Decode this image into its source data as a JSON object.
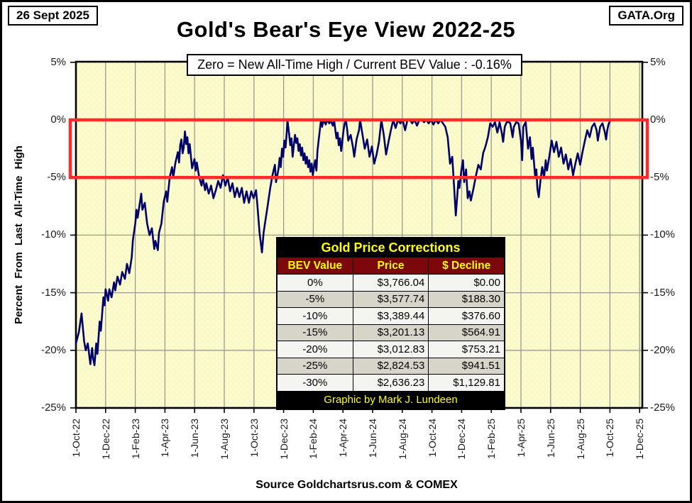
{
  "header": {
    "date_box": "26 Sept 2025",
    "org_box": "GATA.Org",
    "title": "Gold's Bear's Eye View 2022-25",
    "subtitle": "Zero = New All-Time High / Current  BEV Value : -0.16%"
  },
  "y_axis_title": "Percent From Last All-Time High",
  "footer": {
    "source": "Source Goldchartsrus.com & COMEX"
  },
  "corrections_table": {
    "title": "Gold Price Corrections",
    "columns": [
      "BEV Value",
      "Price",
      "$ Decline"
    ],
    "rows": [
      [
        "0%",
        "$3,766.04",
        "$0.00"
      ],
      [
        "-5%",
        "$3,577.74",
        "$188.30"
      ],
      [
        "-10%",
        "$3,389.44",
        "$376.60"
      ],
      [
        "-15%",
        "$3,201.13",
        "$564.91"
      ],
      [
        "-20%",
        "$3,012.83",
        "$753.21"
      ],
      [
        "-25%",
        "$2,824.53",
        "$941.51"
      ],
      [
        "-30%",
        "$2,636.23",
        "$1,129.81"
      ]
    ],
    "footer": "Graphic by Mark J. Lundeen"
  },
  "colors": {
    "plot_bg": "#fafac9",
    "plot_bg_dots": "#ffffdf",
    "gridline": "#9a9a92",
    "axis": "#000000",
    "line": "#00006b",
    "highlight_box": "#ff2b2b",
    "table_title_bg": "#000000",
    "table_title_text": "#ffff00",
    "table_header_bg": "#7d080c",
    "row_alt_bg": "#d7d5ca"
  },
  "chart_data": {
    "type": "line",
    "title": "Gold's Bear's Eye View 2022-25",
    "subtitle": "Zero = New All-Time High / Current BEV Value : -0.16%",
    "ylabel": "Percent From Last All-Time High",
    "x_unit": "months since 1-Oct-2022",
    "ylim": [
      -25,
      5
    ],
    "grid": true,
    "current_bev_value": -0.16,
    "highlight_band": {
      "from": 0,
      "to": -5,
      "note": "red box marks 0% to -5% zone"
    },
    "x_tick_labels": [
      "1-Oct-22",
      "1-Dec-22",
      "1-Feb-23",
      "1-Apr-23",
      "1-Jun-23",
      "1-Aug-23",
      "1-Oct-23",
      "1-Dec-23",
      "1-Feb-24",
      "1-Apr-24",
      "1-Jun-24",
      "1-Aug-24",
      "1-Oct-24",
      "1-Dec-24",
      "1-Feb-25",
      "1-Apr-25",
      "1-Jun-25",
      "1-Aug-25",
      "1-Oct-25",
      "1-Dec-25"
    ],
    "y_tick_labels": [
      "5%",
      "0%",
      "-5%",
      "-10%",
      "-15%",
      "-20%",
      "-25%"
    ],
    "y_tick_values": [
      5,
      0,
      -5,
      -10,
      -15,
      -20,
      -25
    ],
    "series": [
      {
        "name": "Gold BEV (% from last all-time high)",
        "points": [
          [
            0,
            -19.4
          ],
          [
            0.2,
            -18.4
          ],
          [
            0.38,
            -16.8
          ],
          [
            0.55,
            -19.2
          ],
          [
            0.66,
            -20.0
          ],
          [
            0.8,
            -19.4
          ],
          [
            0.97,
            -21.2
          ],
          [
            1.09,
            -19.8
          ],
          [
            1.16,
            -20.7
          ],
          [
            1.25,
            -21.3
          ],
          [
            1.37,
            -19.4
          ],
          [
            1.45,
            -20.3
          ],
          [
            1.6,
            -17.5
          ],
          [
            1.68,
            -18.3
          ],
          [
            1.85,
            -15.4
          ],
          [
            1.93,
            -16.1
          ],
          [
            2.0,
            -14.7
          ],
          [
            2.17,
            -15.7
          ],
          [
            2.25,
            -14.7
          ],
          [
            2.4,
            -15.4
          ],
          [
            2.57,
            -14.1
          ],
          [
            2.65,
            -14.8
          ],
          [
            2.8,
            -13.6
          ],
          [
            2.97,
            -14.3
          ],
          [
            3.12,
            -13.2
          ],
          [
            3.3,
            -13.8
          ],
          [
            3.44,
            -12.5
          ],
          [
            3.6,
            -13.3
          ],
          [
            3.76,
            -11.9
          ],
          [
            3.84,
            -10.4
          ],
          [
            4.0,
            -9.0
          ],
          [
            4.08,
            -7.8
          ],
          [
            4.16,
            -8.5
          ],
          [
            4.32,
            -7.1
          ],
          [
            4.4,
            -6.4
          ],
          [
            4.48,
            -7.8
          ],
          [
            4.64,
            -7.2
          ],
          [
            4.8,
            -9.0
          ],
          [
            4.96,
            -10.0
          ],
          [
            5.12,
            -9.4
          ],
          [
            5.28,
            -11.2
          ],
          [
            5.36,
            -10.5
          ],
          [
            5.52,
            -11.3
          ],
          [
            5.6,
            -9.8
          ],
          [
            5.76,
            -9.0
          ],
          [
            5.92,
            -7.1
          ],
          [
            6.08,
            -6.2
          ],
          [
            6.16,
            -7.1
          ],
          [
            6.32,
            -5.0
          ],
          [
            6.48,
            -4.1
          ],
          [
            6.56,
            -5.0
          ],
          [
            6.71,
            -3.7
          ],
          [
            6.87,
            -2.8
          ],
          [
            6.95,
            -3.7
          ],
          [
            7.03,
            -2.2
          ],
          [
            7.11,
            -1.7
          ],
          [
            7.19,
            -2.9
          ],
          [
            7.27,
            -2.4
          ],
          [
            7.35,
            -1.0
          ],
          [
            7.43,
            -2.1
          ],
          [
            7.51,
            -1.5
          ],
          [
            7.59,
            -2.9
          ],
          [
            7.67,
            -2.1
          ],
          [
            7.83,
            -4.2
          ],
          [
            7.99,
            -3.4
          ],
          [
            8.07,
            -4.4
          ],
          [
            8.15,
            -3.7
          ],
          [
            8.31,
            -5.0
          ],
          [
            8.47,
            -5.7
          ],
          [
            8.55,
            -5.0
          ],
          [
            8.71,
            -6.1
          ],
          [
            8.79,
            -5.5
          ],
          [
            8.95,
            -6.4
          ],
          [
            9.11,
            -5.7
          ],
          [
            9.27,
            -6.8
          ],
          [
            9.43,
            -6.1
          ],
          [
            9.59,
            -5.3
          ],
          [
            9.75,
            -5.9
          ],
          [
            9.91,
            -4.8
          ],
          [
            10.07,
            -5.7
          ],
          [
            10.23,
            -5.0
          ],
          [
            10.39,
            -6.2
          ],
          [
            10.55,
            -5.5
          ],
          [
            10.71,
            -6.7
          ],
          [
            10.86,
            -5.9
          ],
          [
            11.02,
            -6.7
          ],
          [
            11.18,
            -5.9
          ],
          [
            11.34,
            -7.2
          ],
          [
            11.5,
            -6.2
          ],
          [
            11.66,
            -7.2
          ],
          [
            11.82,
            -6.2
          ],
          [
            11.98,
            -6.8
          ],
          [
            12.14,
            -6.1
          ],
          [
            12.22,
            -7.2
          ],
          [
            12.38,
            -9.8
          ],
          [
            12.54,
            -11.5
          ],
          [
            12.65,
            -9.8
          ],
          [
            12.74,
            -9.0
          ],
          [
            12.86,
            -8.0
          ],
          [
            13.1,
            -5.9
          ],
          [
            13.25,
            -4.8
          ],
          [
            13.41,
            -3.9
          ],
          [
            13.49,
            -5.4
          ],
          [
            13.65,
            -4.3
          ],
          [
            13.73,
            -3.3
          ],
          [
            13.81,
            -4.1
          ],
          [
            13.89,
            -2.5
          ],
          [
            13.97,
            -3.2
          ],
          [
            14.05,
            -1.8
          ],
          [
            14.13,
            -2.4
          ],
          [
            14.21,
            -1.1
          ],
          [
            14.26,
            0
          ],
          [
            14.37,
            -1.2
          ],
          [
            14.45,
            -2.2
          ],
          [
            14.53,
            -1.6
          ],
          [
            14.61,
            -3.2
          ],
          [
            14.69,
            -2.2
          ],
          [
            14.77,
            -1.3
          ],
          [
            14.85,
            -2.0
          ],
          [
            14.93,
            -1.6
          ],
          [
            15.01,
            -2.7
          ],
          [
            15.09,
            -2.1
          ],
          [
            15.17,
            -3.1
          ],
          [
            15.25,
            -2.4
          ],
          [
            15.33,
            -3.5
          ],
          [
            15.41,
            -2.9
          ],
          [
            15.49,
            -3.8
          ],
          [
            15.57,
            -3.2
          ],
          [
            15.65,
            -4.1
          ],
          [
            15.73,
            -3.5
          ],
          [
            15.81,
            -4.5
          ],
          [
            15.89,
            -3.8
          ],
          [
            15.97,
            -4.8
          ],
          [
            16.05,
            -4.1
          ],
          [
            16.13,
            -3.5
          ],
          [
            16.21,
            -4.4
          ],
          [
            16.28,
            -2.7
          ],
          [
            16.36,
            -1.8
          ],
          [
            16.44,
            -0.9
          ],
          [
            16.52,
            0
          ],
          [
            16.6,
            -0.6
          ],
          [
            16.68,
            0
          ],
          [
            16.84,
            -0.4
          ],
          [
            16.92,
            0
          ],
          [
            17.08,
            -0.3
          ],
          [
            17.16,
            0
          ],
          [
            17.32,
            -0.5
          ],
          [
            17.4,
            0
          ],
          [
            17.48,
            -0.8
          ],
          [
            17.56,
            -1.6
          ],
          [
            17.64,
            -1.1
          ],
          [
            17.72,
            -2.2
          ],
          [
            17.8,
            -1.6
          ],
          [
            17.88,
            -2.7
          ],
          [
            17.96,
            -1.8
          ],
          [
            18.04,
            -0.9
          ],
          [
            18.12,
            -0.3
          ],
          [
            18.2,
            0
          ],
          [
            18.28,
            -0.8
          ],
          [
            18.36,
            -1.8
          ],
          [
            18.52,
            -1.3
          ],
          [
            18.68,
            -2.4
          ],
          [
            18.76,
            -3.2
          ],
          [
            18.92,
            -1.7
          ],
          [
            19.08,
            -0.9
          ],
          [
            19.16,
            0
          ],
          [
            19.32,
            -1.3
          ],
          [
            19.47,
            -2.5
          ],
          [
            19.63,
            -1.7
          ],
          [
            19.79,
            -3.2
          ],
          [
            19.95,
            -2.3
          ],
          [
            20.11,
            -3.8
          ],
          [
            20.27,
            -3.0
          ],
          [
            20.43,
            -1.9
          ],
          [
            20.59,
            0
          ],
          [
            20.75,
            -1.3
          ],
          [
            20.91,
            -3.0
          ],
          [
            21.07,
            -1.9
          ],
          [
            21.23,
            -0.9
          ],
          [
            21.39,
            0
          ],
          [
            21.55,
            -0.7
          ],
          [
            21.71,
            0
          ],
          [
            21.87,
            -0.3
          ],
          [
            22.03,
            0
          ],
          [
            22.19,
            -0.9
          ],
          [
            22.35,
            0
          ],
          [
            22.51,
            0
          ],
          [
            22.67,
            -0.3
          ],
          [
            22.83,
            0
          ],
          [
            22.99,
            -0.5
          ],
          [
            23.15,
            0
          ],
          [
            23.31,
            0
          ],
          [
            23.47,
            -0.2
          ],
          [
            23.63,
            0
          ],
          [
            23.78,
            -0.3
          ],
          [
            23.94,
            0
          ],
          [
            24.1,
            -0.4
          ],
          [
            24.26,
            0
          ],
          [
            24.42,
            -0.3
          ],
          [
            24.58,
            0
          ],
          [
            24.74,
            -0.3
          ],
          [
            24.9,
            -0.6
          ],
          [
            25.06,
            -1.5
          ],
          [
            25.22,
            -3.8
          ],
          [
            25.37,
            -3.2
          ],
          [
            25.5,
            -5.9
          ],
          [
            25.61,
            -8.3
          ],
          [
            25.78,
            -5.3
          ],
          [
            25.85,
            -5.9
          ],
          [
            25.98,
            -4.4
          ],
          [
            26.09,
            -3.5
          ],
          [
            26.17,
            -5.4
          ],
          [
            26.3,
            -4.3
          ],
          [
            26.41,
            -6.8
          ],
          [
            26.52,
            -6.2
          ],
          [
            26.62,
            -7.0
          ],
          [
            26.81,
            -5.9
          ],
          [
            26.97,
            -4.8
          ],
          [
            27.13,
            -3.9
          ],
          [
            27.29,
            -4.3
          ],
          [
            27.45,
            -2.9
          ],
          [
            27.61,
            -2.3
          ],
          [
            27.77,
            -1.5
          ],
          [
            27.93,
            -0.3
          ],
          [
            28.09,
            -0.6
          ],
          [
            28.25,
            -0.2
          ],
          [
            28.41,
            -1.1
          ],
          [
            28.56,
            -0.2
          ],
          [
            28.72,
            -1.2
          ],
          [
            28.8,
            -1.9
          ],
          [
            28.91,
            -0.6
          ],
          [
            29.04,
            -0.2
          ],
          [
            29.2,
            -0.2
          ],
          [
            29.28,
            -0.3
          ],
          [
            29.44,
            -1.5
          ],
          [
            29.52,
            -0.6
          ],
          [
            29.68,
            -0.2
          ],
          [
            29.84,
            -0.3
          ],
          [
            30.0,
            -1.8
          ],
          [
            30.08,
            -3.5
          ],
          [
            30.16,
            -0.6
          ],
          [
            30.32,
            -0.2
          ],
          [
            30.4,
            -1.4
          ],
          [
            30.48,
            -2.5
          ],
          [
            30.61,
            -1.5
          ],
          [
            30.72,
            -3.4
          ],
          [
            30.8,
            -2.4
          ],
          [
            30.96,
            -5.0
          ],
          [
            31.04,
            -4.3
          ],
          [
            31.11,
            -6.0
          ],
          [
            31.2,
            -6.7
          ],
          [
            31.31,
            -5.3
          ],
          [
            31.43,
            -4.1
          ],
          [
            31.56,
            -5.0
          ],
          [
            31.67,
            -3.5
          ],
          [
            31.75,
            -4.4
          ],
          [
            31.91,
            -3.2
          ],
          [
            32.07,
            -1.8
          ],
          [
            32.23,
            -2.8
          ],
          [
            32.39,
            -1.9
          ],
          [
            32.55,
            -3.2
          ],
          [
            32.71,
            -2.4
          ],
          [
            32.87,
            -3.8
          ],
          [
            33.03,
            -3.0
          ],
          [
            33.19,
            -4.3
          ],
          [
            33.35,
            -3.4
          ],
          [
            33.51,
            -4.8
          ],
          [
            33.67,
            -3.8
          ],
          [
            33.83,
            -2.9
          ],
          [
            33.99,
            -3.9
          ],
          [
            34.15,
            -2.8
          ],
          [
            34.31,
            -1.8
          ],
          [
            34.47,
            -0.9
          ],
          [
            34.63,
            -1.5
          ],
          [
            34.79,
            -0.6
          ],
          [
            34.95,
            -0.3
          ],
          [
            35.1,
            -0.9
          ],
          [
            35.18,
            -1.8
          ],
          [
            35.34,
            -0.6
          ],
          [
            35.5,
            -0.3
          ],
          [
            35.66,
            -1.1
          ],
          [
            35.74,
            -1.7
          ],
          [
            35.82,
            -0.9
          ],
          [
            35.9,
            -0.4
          ],
          [
            35.98,
            -0.16
          ]
        ]
      }
    ]
  }
}
